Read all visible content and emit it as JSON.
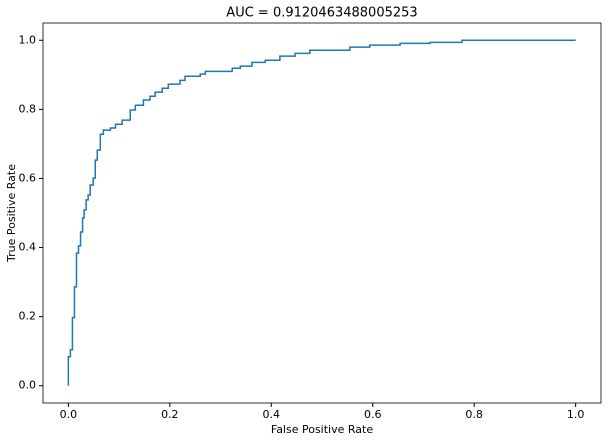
{
  "chart_data": {
    "type": "line",
    "title": "AUC = 0.9120463488005253",
    "xlabel": "False Positive Rate",
    "ylabel": "True Positive Rate",
    "x": [
      0,
      0,
      0.004,
      0.004,
      0.008,
      0.008,
      0.012,
      0.012,
      0.016,
      0.016,
      0.02,
      0.02,
      0.024,
      0.024,
      0.028,
      0.028,
      0.031,
      0.031,
      0.035,
      0.035,
      0.039,
      0.039,
      0.043,
      0.043,
      0.049,
      0.049,
      0.053,
      0.053,
      0.057,
      0.057,
      0.063,
      0.063,
      0.069,
      0.069,
      0.083,
      0.083,
      0.093,
      0.093,
      0.106,
      0.106,
      0.122,
      0.122,
      0.132,
      0.132,
      0.148,
      0.148,
      0.161,
      0.161,
      0.171,
      0.171,
      0.185,
      0.185,
      0.197,
      0.197,
      0.22,
      0.22,
      0.23,
      0.23,
      0.26,
      0.26,
      0.27,
      0.27,
      0.323,
      0.323,
      0.339,
      0.339,
      0.362,
      0.362,
      0.388,
      0.388,
      0.417,
      0.417,
      0.447,
      0.447,
      0.476,
      0.476,
      0.555,
      0.555,
      0.594,
      0.594,
      0.654,
      0.654,
      0.713,
      0.713,
      0.776,
      0.776,
      1.0
    ],
    "values": [
      0,
      0.084,
      0.084,
      0.104,
      0.104,
      0.197,
      0.197,
      0.286,
      0.286,
      0.384,
      0.384,
      0.405,
      0.405,
      0.445,
      0.445,
      0.486,
      0.486,
      0.509,
      0.509,
      0.538,
      0.538,
      0.552,
      0.552,
      0.581,
      0.581,
      0.601,
      0.601,
      0.653,
      0.653,
      0.682,
      0.682,
      0.728,
      0.728,
      0.74,
      0.74,
      0.746,
      0.746,
      0.757,
      0.757,
      0.769,
      0.769,
      0.798,
      0.798,
      0.812,
      0.812,
      0.827,
      0.827,
      0.838,
      0.838,
      0.85,
      0.85,
      0.861,
      0.861,
      0.873,
      0.873,
      0.884,
      0.884,
      0.896,
      0.896,
      0.902,
      0.902,
      0.91,
      0.91,
      0.919,
      0.919,
      0.925,
      0.925,
      0.936,
      0.936,
      0.942,
      0.942,
      0.954,
      0.954,
      0.962,
      0.962,
      0.971,
      0.971,
      0.98,
      0.98,
      0.986,
      0.986,
      0.991,
      0.991,
      0.994,
      0.994,
      1.0,
      1.0
    ],
    "color": "#1f77b4",
    "xlim": [
      -0.05,
      1.05
    ],
    "ylim": [
      -0.05,
      1.05
    ],
    "xticks": [
      {
        "value": 0,
        "label": "0.0"
      },
      0.2,
      0.4,
      0.6,
      0.8,
      {
        "value": 1,
        "label": "1.0"
      }
    ],
    "yticks": [
      {
        "value": 0,
        "label": "0.0"
      },
      0.2,
      0.4,
      0.6,
      0.8,
      {
        "value": 1,
        "label": "1.0"
      }
    ],
    "grid": false
  }
}
